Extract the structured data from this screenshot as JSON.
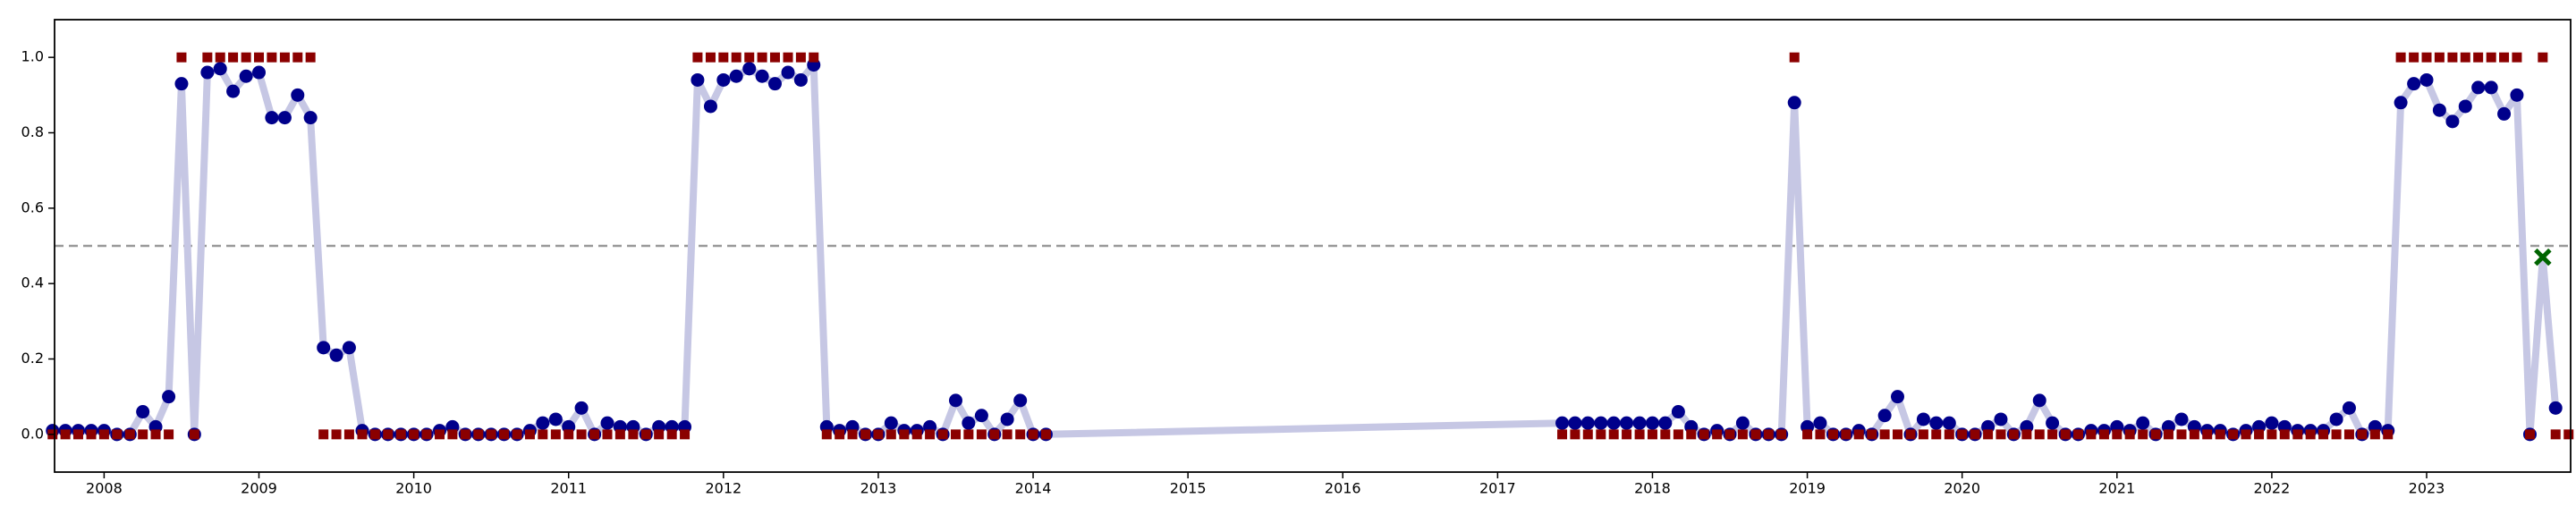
{
  "chart_data": {
    "type": "scatter",
    "x": [
      2007.667,
      2007.75,
      2007.833,
      2007.917,
      2008.0,
      2008.083,
      2008.167,
      2008.25,
      2008.333,
      2008.417,
      2008.5,
      2008.583,
      2008.667,
      2008.75,
      2008.833,
      2008.917,
      2009.0,
      2009.083,
      2009.167,
      2009.25,
      2009.333,
      2009.417,
      2009.5,
      2009.583,
      2009.667,
      2009.75,
      2009.833,
      2009.917,
      2010.0,
      2010.083,
      2010.167,
      2010.25,
      2010.333,
      2010.417,
      2010.5,
      2010.583,
      2010.667,
      2010.75,
      2010.833,
      2010.917,
      2011.0,
      2011.083,
      2011.167,
      2011.25,
      2011.333,
      2011.417,
      2011.5,
      2011.583,
      2011.667,
      2011.75,
      2011.833,
      2011.917,
      2012.0,
      2012.083,
      2012.167,
      2012.25,
      2012.333,
      2012.417,
      2012.5,
      2012.583,
      2012.667,
      2012.75,
      2012.833,
      2012.917,
      2013.0,
      2013.083,
      2013.167,
      2013.25,
      2013.333,
      2013.417,
      2013.5,
      2013.583,
      2013.667,
      2013.75,
      2013.833,
      2013.917,
      2014.0,
      2014.083,
      2017.417,
      2017.5,
      2017.583,
      2017.667,
      2017.75,
      2017.833,
      2017.917,
      2018.0,
      2018.083,
      2018.167,
      2018.25,
      2018.333,
      2018.417,
      2018.5,
      2018.583,
      2018.667,
      2018.75,
      2018.833,
      2018.917,
      2019.0,
      2019.083,
      2019.167,
      2019.25,
      2019.333,
      2019.417,
      2019.5,
      2019.583,
      2019.667,
      2019.75,
      2019.833,
      2019.917,
      2020.0,
      2020.083,
      2020.167,
      2020.25,
      2020.333,
      2020.417,
      2020.5,
      2020.583,
      2020.667,
      2020.75,
      2020.833,
      2020.917,
      2021.0,
      2021.083,
      2021.167,
      2021.25,
      2021.333,
      2021.417,
      2021.5,
      2021.583,
      2021.667,
      2021.75,
      2021.833,
      2021.917,
      2022.0,
      2022.083,
      2022.167,
      2022.25,
      2022.333,
      2022.417,
      2022.5,
      2022.583,
      2022.667,
      2022.75,
      2022.833,
      2022.917,
      2023.0,
      2023.083,
      2023.167,
      2023.25,
      2023.333,
      2023.417,
      2023.5,
      2023.583,
      2023.667,
      2023.75,
      2023.833,
      2023.917
    ],
    "series": [
      {
        "type": "line",
        "color": "#c6c7e4",
        "values": [
          0.01,
          0.01,
          0.01,
          0.01,
          0.01,
          0,
          0,
          0.06,
          0.02,
          0.1,
          0.93,
          0,
          0.96,
          0.97,
          0.91,
          0.95,
          0.96,
          0.84,
          0.84,
          0.9,
          0.84,
          0.23,
          0.21,
          0.23,
          0.01,
          0,
          0,
          0,
          0,
          0,
          0.01,
          0.02,
          0,
          0,
          0,
          0,
          0,
          0.01,
          0.03,
          0.04,
          0.02,
          0.07,
          0,
          0.03,
          0.02,
          0.02,
          0,
          0.02,
          0.02,
          0.02,
          0.94,
          0.87,
          0.94,
          0.95,
          0.97,
          0.95,
          0.93,
          0.96,
          0.94,
          0.98,
          0.02,
          0.01,
          0.02,
          0,
          0,
          0.03,
          0.01,
          0.01,
          0.02,
          0,
          0.09,
          0.03,
          0.05,
          0,
          0.04,
          0.09,
          0,
          0,
          0.03,
          0.03,
          0.03,
          0.03,
          0.03,
          0.03,
          0.03,
          0.03,
          0.03,
          0.06,
          0.02,
          0,
          0.01,
          0,
          0.03,
          0,
          0,
          0,
          0.88,
          0.02,
          0.03,
          0,
          0,
          0.01,
          0,
          0.05,
          0.1,
          0,
          0.04,
          0.03,
          0.03,
          0,
          0,
          0.02,
          0.04,
          0,
          0.02,
          0.09,
          0.03,
          0,
          0,
          0.01,
          0.01,
          0.02,
          0.01,
          0.03,
          0,
          0.02,
          0.04,
          0.02,
          0.01,
          0.01,
          0,
          0.01,
          0.02,
          0.03,
          0.02,
          0.01,
          0.01,
          0.01,
          0.04,
          0.07,
          0,
          0.02,
          0.01,
          0.88,
          0.93,
          0.94,
          0.86,
          0.83,
          0.87,
          0.92,
          0.92,
          0.85,
          0.9,
          0,
          0.47,
          0.07,
          null
        ]
      },
      {
        "type": "scatter",
        "marker": "circle",
        "color": "#00008b",
        "values": [
          0.01,
          0.01,
          0.01,
          0.01,
          0.01,
          0,
          0,
          0.06,
          0.02,
          0.1,
          0.93,
          0,
          0.96,
          0.97,
          0.91,
          0.95,
          0.96,
          0.84,
          0.84,
          0.9,
          0.84,
          0.23,
          0.21,
          0.23,
          0.01,
          0,
          0,
          0,
          0,
          0,
          0.01,
          0.02,
          0,
          0,
          0,
          0,
          0,
          0.01,
          0.03,
          0.04,
          0.02,
          0.07,
          0,
          0.03,
          0.02,
          0.02,
          0,
          0.02,
          0.02,
          0.02,
          0.94,
          0.87,
          0.94,
          0.95,
          0.97,
          0.95,
          0.93,
          0.96,
          0.94,
          0.98,
          0.02,
          0.01,
          0.02,
          0,
          0,
          0.03,
          0.01,
          0.01,
          0.02,
          0,
          0.09,
          0.03,
          0.05,
          0,
          0.04,
          0.09,
          0,
          0,
          0.03,
          0.03,
          0.03,
          0.03,
          0.03,
          0.03,
          0.03,
          0.03,
          0.03,
          0.06,
          0.02,
          0,
          0.01,
          0,
          0.03,
          0,
          0,
          0,
          0.88,
          0.02,
          0.03,
          0,
          0,
          0.01,
          0,
          0.05,
          0.1,
          0,
          0.04,
          0.03,
          0.03,
          0,
          0,
          0.02,
          0.04,
          0,
          0.02,
          0.09,
          0.03,
          0,
          0,
          0.01,
          0.01,
          0.02,
          0.01,
          0.03,
          0,
          0.02,
          0.04,
          0.02,
          0.01,
          0.01,
          0,
          0.01,
          0.02,
          0.03,
          0.02,
          0.01,
          0.01,
          0.01,
          0.04,
          0.07,
          0,
          0.02,
          0.01,
          0.88,
          0.93,
          0.94,
          0.86,
          0.83,
          0.87,
          0.92,
          0.92,
          0.85,
          0.9,
          0,
          null,
          0.07,
          null
        ]
      },
      {
        "type": "scatter",
        "marker": "square",
        "color": "#8b0000",
        "values": [
          0,
          0,
          0,
          0,
          0,
          0,
          0,
          0,
          0,
          0,
          1,
          0,
          1,
          1,
          1,
          1,
          1,
          1,
          1,
          1,
          1,
          0,
          0,
          0,
          0,
          0,
          0,
          0,
          0,
          0,
          0,
          0,
          0,
          0,
          0,
          0,
          0,
          0,
          0,
          0,
          0,
          0,
          0,
          0,
          0,
          0,
          0,
          0,
          0,
          0,
          1,
          1,
          1,
          1,
          1,
          1,
          1,
          1,
          1,
          1,
          0,
          0,
          0,
          0,
          0,
          0,
          0,
          0,
          0,
          0,
          0,
          0,
          0,
          0,
          0,
          0,
          0,
          0,
          0,
          0,
          0,
          0,
          0,
          0,
          0,
          0,
          0,
          0,
          0,
          0,
          0,
          0,
          0,
          0,
          0,
          0,
          1,
          0,
          0,
          0,
          0,
          0,
          0,
          0,
          0,
          0,
          0,
          0,
          0,
          0,
          0,
          0,
          0,
          0,
          0,
          0,
          0,
          0,
          0,
          0,
          0,
          0,
          0,
          0,
          0,
          0,
          0,
          0,
          0,
          0,
          0,
          0,
          0,
          0,
          0,
          0,
          0,
          0,
          0,
          0,
          0,
          0,
          0,
          1,
          1,
          1,
          1,
          1,
          1,
          1,
          1,
          1,
          1,
          0,
          1,
          0,
          0
        ]
      },
      {
        "type": "scatter",
        "marker": "x",
        "color": "#006400",
        "x": [
          2023.75
        ],
        "values": [
          0.47
        ]
      }
    ],
    "hlines": [
      {
        "value": 0.5,
        "color": "#999999",
        "dashed": true
      }
    ],
    "xlim": [
      2007.68,
      2023.93
    ],
    "ylim": [
      -0.1,
      1.1
    ],
    "xticks": [
      2008,
      2009,
      2010,
      2011,
      2012,
      2013,
      2014,
      2015,
      2016,
      2017,
      2018,
      2019,
      2020,
      2021,
      2022,
      2023
    ],
    "yticks": [
      {
        "value": 0,
        "label": "0.0"
      },
      0.2,
      0.4,
      0.6,
      0.8,
      {
        "value": 1,
        "label": "1.0"
      }
    ]
  }
}
